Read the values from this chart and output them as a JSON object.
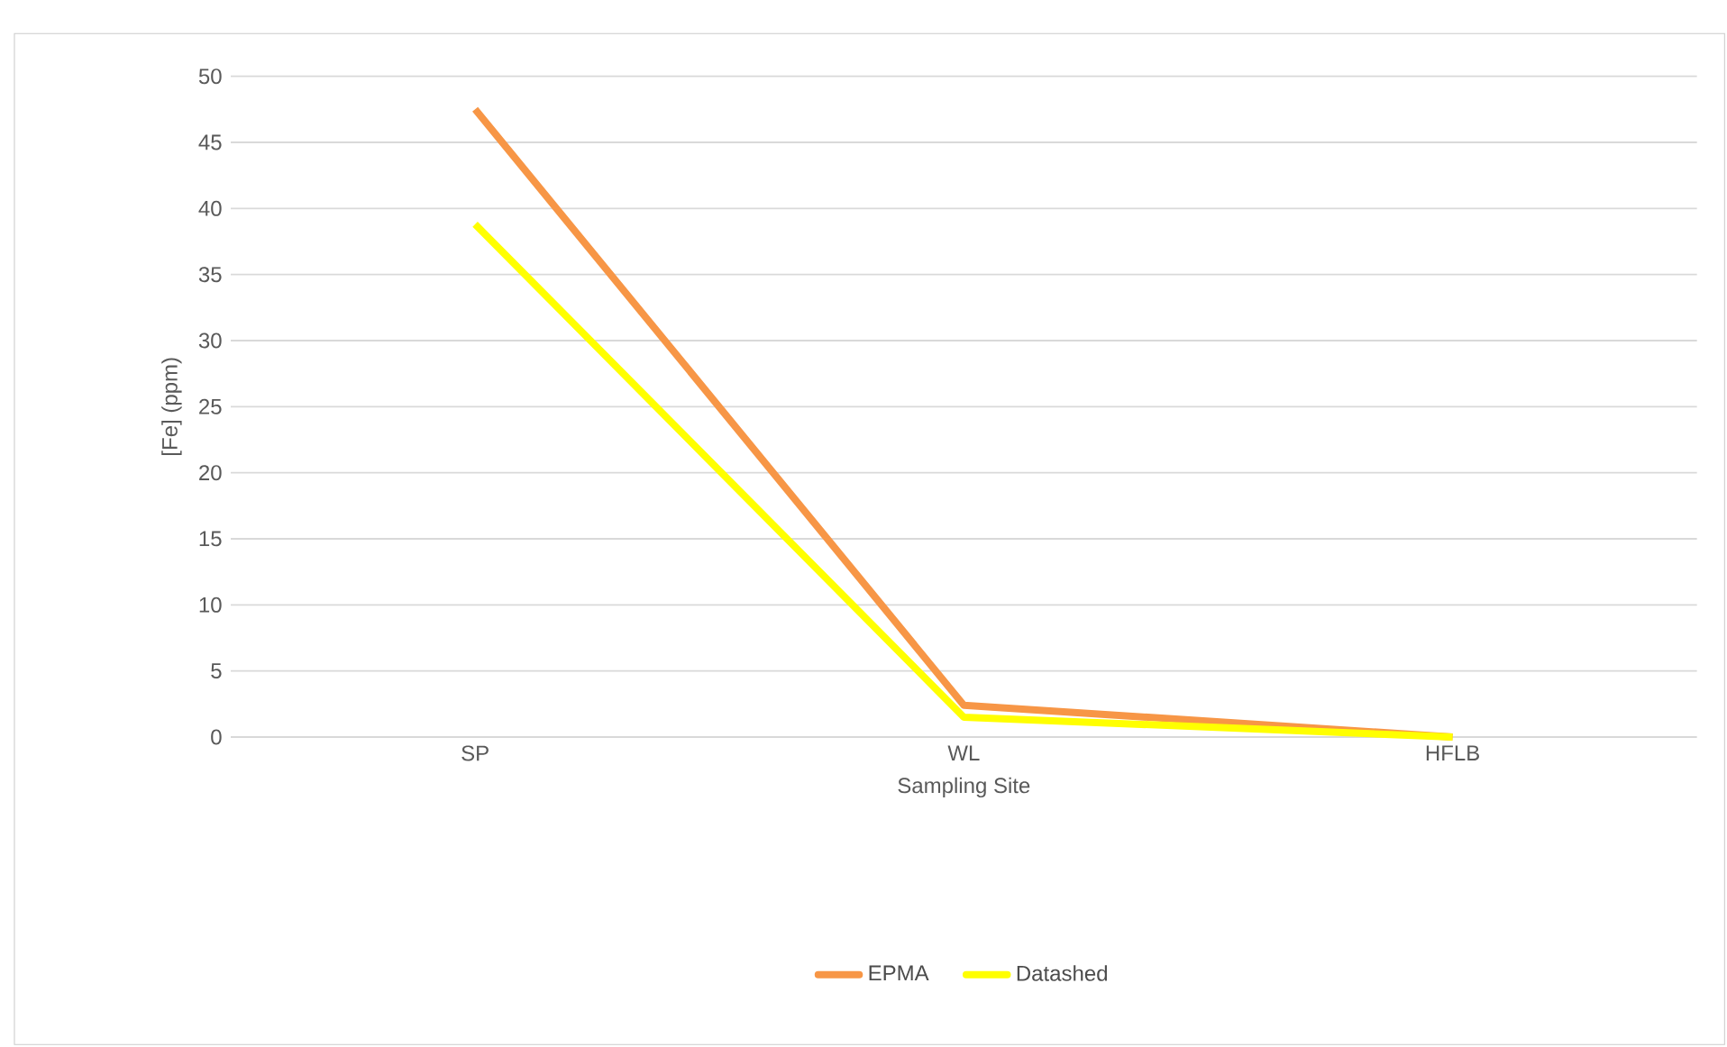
{
  "chart_data": {
    "type": "line",
    "xlabel": "Sampling Site",
    "ylabel": "[Fe] (ppm)",
    "categories": [
      "SP",
      "WL",
      "HFLB"
    ],
    "series": [
      {
        "name": "EPMA",
        "color": "#f79646",
        "values": [
          47.5,
          2.4,
          0
        ]
      },
      {
        "name": "Datashed",
        "color": "#ffff00",
        "values": [
          38.8,
          1.5,
          0
        ]
      }
    ],
    "ylim": [
      0,
      50
    ],
    "yticks": [
      0,
      5,
      10,
      15,
      20,
      25,
      30,
      35,
      40,
      45,
      50
    ],
    "grid": "y",
    "legend": "bottom",
    "marker": "none",
    "line_style": "solid"
  }
}
